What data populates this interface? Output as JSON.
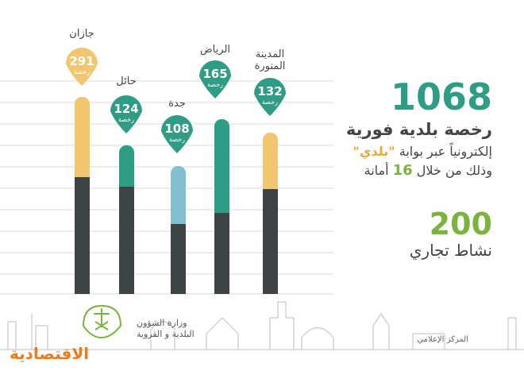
{
  "cities": [
    {
      "name_lines": [
        "جازان"
      ],
      "count": 291,
      "unit": "رخصة"
    },
    {
      "name_lines": [
        "حائل"
      ],
      "count": 124,
      "unit": "رخصة"
    },
    {
      "name_lines": [
        "جدة"
      ],
      "count": 108,
      "unit": "رخصة"
    },
    {
      "name_lines": [
        "الرياض"
      ],
      "count": 165,
      "unit": "رخصة"
    },
    {
      "name_lines": [
        "المدينة",
        "المنورة"
      ],
      "count": 132,
      "unit": "رخصة"
    }
  ],
  "headline": {
    "total": 1068,
    "line1": "رخصة بلدية فورية",
    "line2": "إلكترونياً عبر بوابة",
    "portal": "\"بلدي\"",
    "line3_prefix": "وذلك من خلال",
    "line3_number": 16,
    "line3_suffix": "أمانة"
  },
  "activities": {
    "count": 200,
    "label": "نشاط تجاري"
  },
  "footer": {
    "ministry_line1": "وزارة الشؤون",
    "ministry_line2": "البلدية و القروية",
    "media": "المركز الإعلامي",
    "brand": "الاقتصادية"
  }
}
